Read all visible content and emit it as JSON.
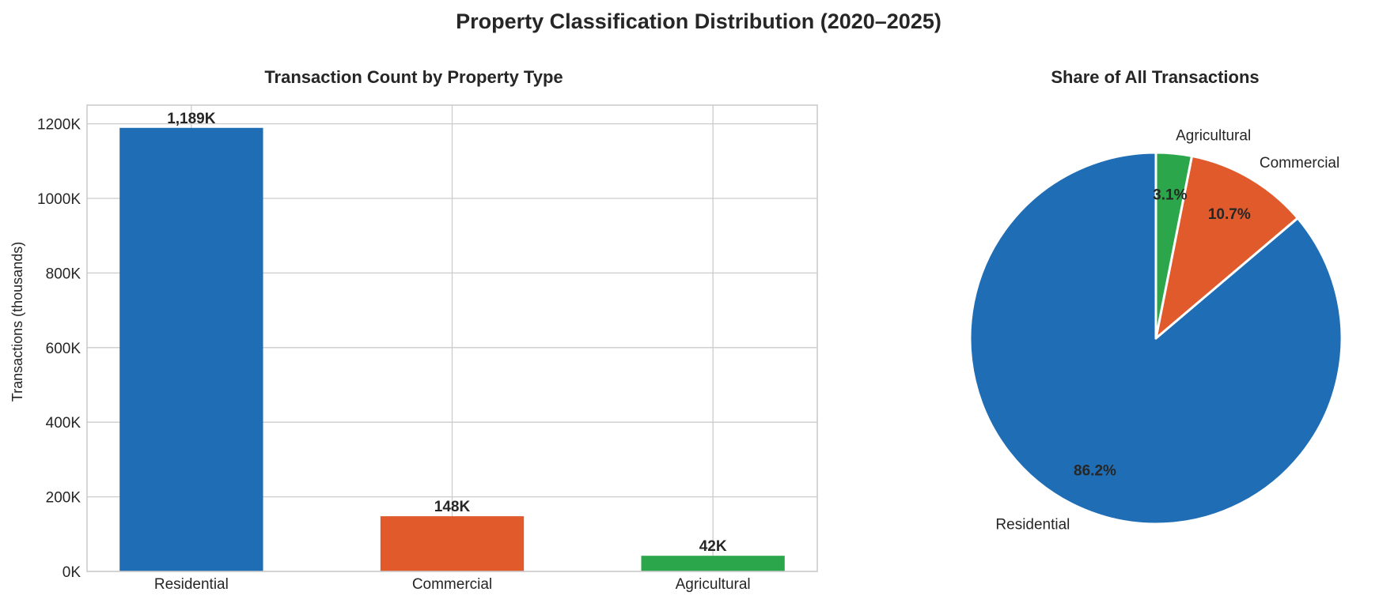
{
  "figure": {
    "title": "Property Classification Distribution (2020–2025)"
  },
  "colors": {
    "residential": "#1f6eb5",
    "commercial": "#e05a2b",
    "agricultural": "#2ca64a",
    "grid": "#cccccc",
    "text": "#262626"
  },
  "chart_data": [
    {
      "type": "bar",
      "title": "Transaction Count by Property Type",
      "xlabel": "",
      "ylabel": "Transactions (thousands)",
      "categories": [
        "Residential",
        "Commercial",
        "Agricultural"
      ],
      "values": [
        1189,
        148,
        42
      ],
      "value_labels": [
        "1,189K",
        "148K",
        "42K"
      ],
      "colors": [
        "#1f6eb5",
        "#e05a2b",
        "#2ca64a"
      ],
      "ylim": [
        0,
        1250
      ],
      "yticks": [
        0,
        200,
        400,
        600,
        800,
        1000,
        1200
      ],
      "ytick_labels": [
        "0K",
        "200K",
        "400K",
        "600K",
        "800K",
        "1000K",
        "1200K"
      ],
      "grid": true
    },
    {
      "type": "pie",
      "title": "Share of All Transactions",
      "labels": [
        "Residential",
        "Commercial",
        "Agricultural"
      ],
      "values": [
        86.2,
        10.7,
        3.1
      ],
      "pct_labels": [
        "86.2%",
        "10.7%",
        "3.1%"
      ],
      "colors": [
        "#1f6eb5",
        "#e05a2b",
        "#2ca64a"
      ],
      "start_angle": "90 degrees, counterclockwise"
    }
  ]
}
